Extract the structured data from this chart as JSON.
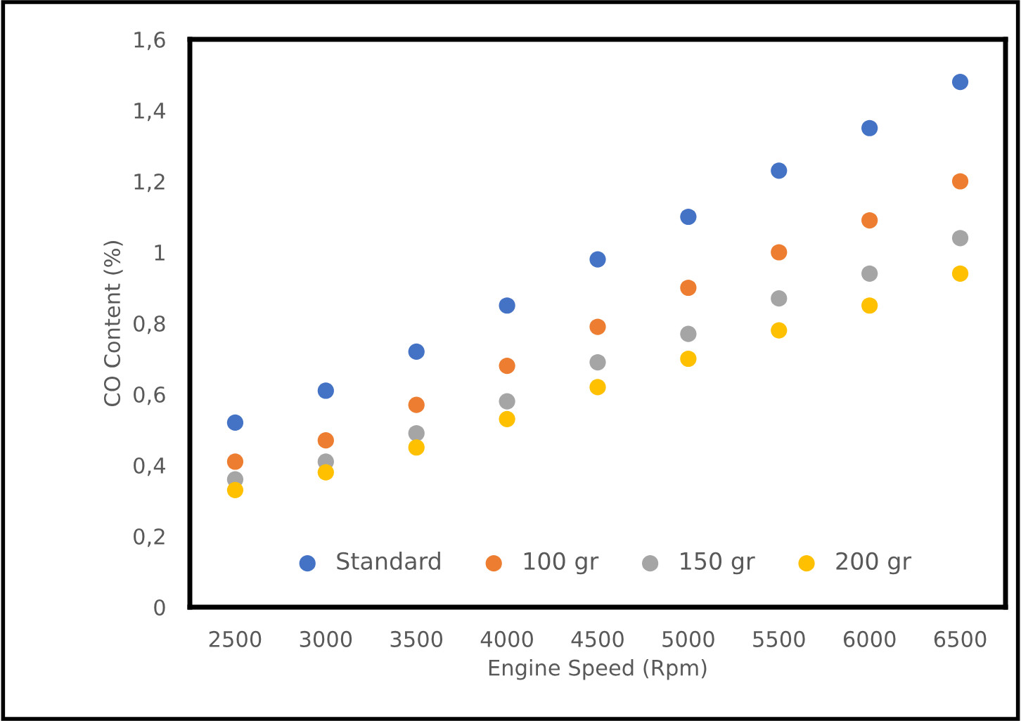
{
  "chart_data": {
    "type": "scatter",
    "xlabel": "Engine Speed (Rpm)",
    "ylabel": "CO Content (%)",
    "categories": [
      "2500",
      "3000",
      "3500",
      "4000",
      "4500",
      "5000",
      "5500",
      "6000",
      "6500"
    ],
    "series": [
      {
        "name": "Standard",
        "color": "#4472c4",
        "values": [
          0.52,
          0.61,
          0.72,
          0.85,
          0.98,
          1.1,
          1.23,
          1.35,
          1.48
        ]
      },
      {
        "name": "100 gr",
        "color": "#ed7d31",
        "values": [
          0.41,
          0.47,
          0.57,
          0.68,
          0.79,
          0.9,
          1.0,
          1.09,
          1.2
        ]
      },
      {
        "name": "150 gr",
        "color": "#a5a5a5",
        "values": [
          0.36,
          0.41,
          0.49,
          0.58,
          0.69,
          0.77,
          0.87,
          0.94,
          1.04
        ]
      },
      {
        "name": "200 gr",
        "color": "#ffc000",
        "values": [
          0.33,
          0.38,
          0.45,
          0.53,
          0.62,
          0.7,
          0.78,
          0.85,
          0.94
        ]
      }
    ],
    "ylim": [
      0,
      1.6
    ],
    "yticks": [
      {
        "value": 0,
        "label": "0"
      },
      {
        "value": 0.2,
        "label": "0,2"
      },
      {
        "value": 0.4,
        "label": "0,4"
      },
      {
        "value": 0.6,
        "label": "0,6"
      },
      {
        "value": 0.8,
        "label": "0,8"
      },
      {
        "value": 1,
        "label": "1"
      },
      {
        "value": 1.2,
        "label": "1,2"
      },
      {
        "value": 1.4,
        "label": "1,4"
      },
      {
        "value": 1.6,
        "label": "1,6"
      }
    ],
    "grid": false,
    "legend": "bottom",
    "marker": "circle"
  }
}
